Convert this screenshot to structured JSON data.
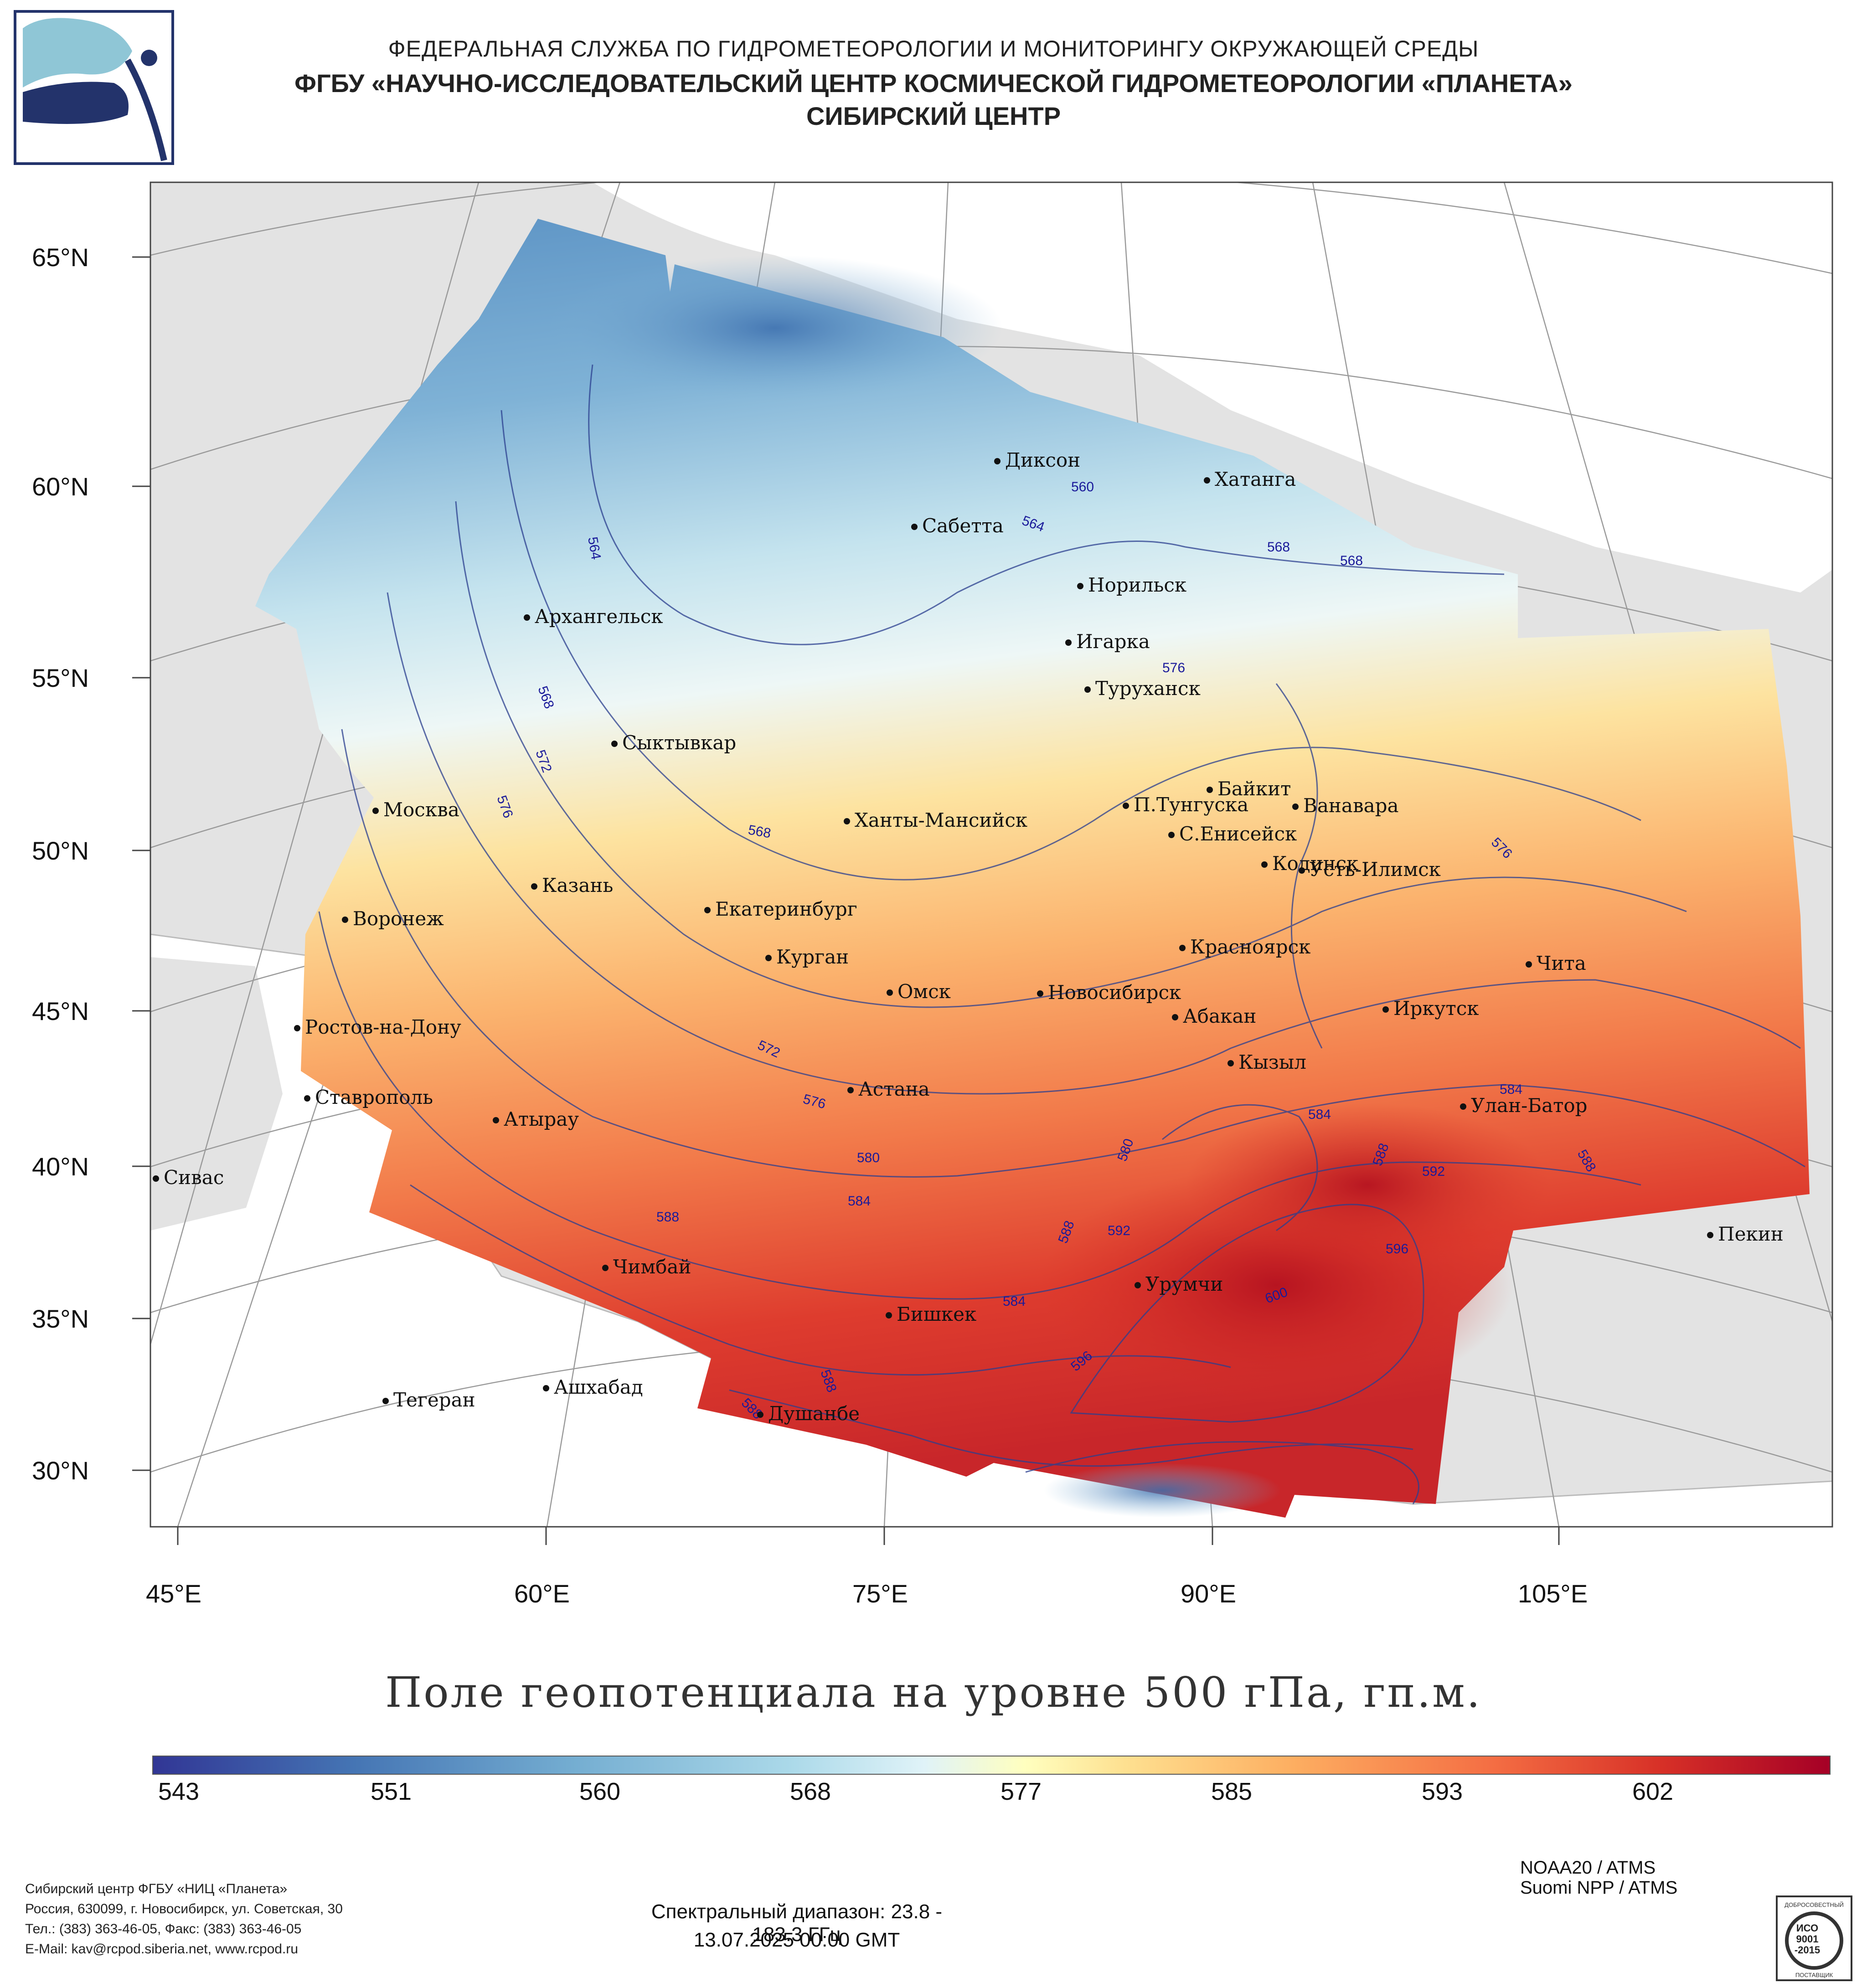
{
  "header": {
    "line1": "ФЕДЕРАЛЬНАЯ СЛУЖБА ПО ГИДРОМЕТЕОРОЛОГИИ И МОНИТОРИНГУ ОКРУЖАЮЩЕЙ СРЕДЫ",
    "line2": "ФГБУ «НАУЧНО-ИССЛЕДОВАТЕЛЬСКИЙ ЦЕНТР КОСМИЧЕСКОЙ ГИДРОМЕТЕОРОЛОГИИ «ПЛАНЕТА»",
    "line3": "СИБИРСКИЙ ЦЕНТР"
  },
  "logo_icon": "planeta-satellite-logo",
  "lat_labels": [
    "65°N",
    "60°N",
    "55°N",
    "50°N",
    "45°N",
    "40°N",
    "35°N",
    "30°N"
  ],
  "lon_labels": [
    "45°E",
    "60°E",
    "75°E",
    "90°E",
    "105°E"
  ],
  "cities": [
    "Диксон",
    "Хатанга",
    "Сабетта",
    "Норильск",
    "Архангельск",
    "Игарка",
    "Туруханск",
    "Сыктывкар",
    "Байкит",
    "Москва",
    "П.Тунгуска",
    "Ванавара",
    "Ханты-Мансийск",
    "С.Енисейск",
    "Кодинск",
    "Усть-Илимск",
    "Казань",
    "Екатеринбург",
    "Воронеж",
    "Курган",
    "Красноярск",
    "Чита",
    "Омск",
    "Новосибирск",
    "Ростов-на-Дону",
    "Иркутск",
    "Абакан",
    "Кызыл",
    "Астана",
    "Ставрополь",
    "Улан-Батор",
    "Атырау",
    "Сивас",
    "Пекин",
    "Чимбай",
    "Урумчи",
    "Бишкек",
    "Ашхабад",
    "Тегеран",
    "Душанбе"
  ],
  "contour_labels": [
    "560",
    "564",
    "564",
    "568",
    "568",
    "568",
    "572",
    "568",
    "576",
    "576",
    "576",
    "572",
    "576",
    "580",
    "584",
    "588",
    "588",
    "580",
    "588",
    "592",
    "584",
    "596",
    "600",
    "588",
    "584",
    "588",
    "592",
    "596",
    "588",
    "584"
  ],
  "map_title": "Поле геопотенциала на уровне 500 гПа, гп.м.",
  "colorbar": {
    "ticks": [
      "543",
      "551",
      "560",
      "568",
      "577",
      "585",
      "593",
      "602"
    ],
    "colors": [
      "#313695",
      "#4575b4",
      "#74add1",
      "#abd9e9",
      "#e0f3f8",
      "#ffffbf",
      "#fee090",
      "#fdae61",
      "#f46d43",
      "#d73027",
      "#a50026"
    ]
  },
  "footer": {
    "org": [
      "Сибирский центр ФГБУ «НИЦ «Планета»",
      "Россия, 630099, г. Новосибирск, ул. Советская, 30",
      "Тел.: (383) 363-46-05, Факс: (383) 363-46-05",
      "E-Mail: kav@rcpod.siberia.net, www.rcpod.ru"
    ],
    "spectral": "Спектральный диапазон: 23.8 - 183.3 ГГц",
    "datetime": "13.07.2025 00:00 GMT",
    "instrument1": "NOAA20 / ATMS",
    "instrument2": "Suomi NPP / ATMS",
    "iso_badge": [
      "ДОБРОСОВЕСТНЫЙ",
      "ИСО",
      "9001",
      "-2015",
      "ПОСТАВЩИК"
    ]
  }
}
